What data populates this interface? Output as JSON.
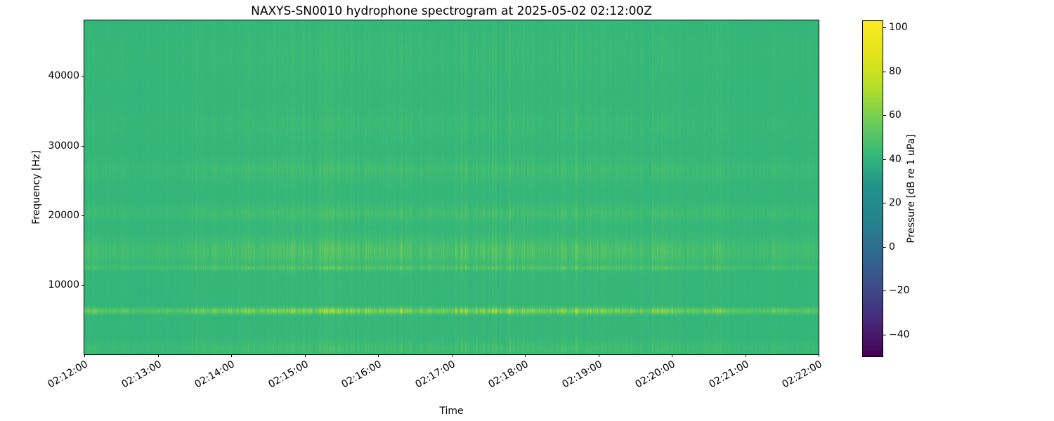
{
  "chart_data": {
    "type": "heatmap",
    "title": "NAXYS-SN0010 hydrophone spectrogram at 2025-05-02 02:12:00Z",
    "xlabel": "Time",
    "ylabel": "Frequency [Hz]",
    "x_ticks": [
      "02:12:00",
      "02:13:00",
      "02:14:00",
      "02:15:00",
      "02:16:00",
      "02:17:00",
      "02:18:00",
      "02:19:00",
      "02:20:00",
      "02:21:00",
      "02:22:00"
    ],
    "y_ticks": [
      {
        "label": "10000",
        "value": 10000
      },
      {
        "label": "20000",
        "value": 20000
      },
      {
        "label": "30000",
        "value": 30000
      },
      {
        "label": "40000",
        "value": 40000
      }
    ],
    "y_range_hz": [
      0,
      48000
    ],
    "duration_seconds": 600,
    "colormap": "viridis",
    "grid": false,
    "colorbar": {
      "label": "Pressure [dB re 1 uPa]",
      "vmin": -50,
      "vmax": 103,
      "ticks": [
        {
          "label": "100",
          "value": 100
        },
        {
          "label": "80",
          "value": 80
        },
        {
          "label": "60",
          "value": 60
        },
        {
          "label": "40",
          "value": 40
        },
        {
          "label": "20",
          "value": 20
        },
        {
          "label": "0",
          "value": 0
        },
        {
          "label": "−20",
          "value": -20
        },
        {
          "label": "−40",
          "value": -40
        }
      ]
    },
    "background_db": 41,
    "bands": [
      {
        "name": "tonal-6khz",
        "center_hz": 6200,
        "width_hz": 300,
        "peak_db_boost": 24
      },
      {
        "name": "tonal-12-4khz",
        "center_hz": 12400,
        "width_hz": 220,
        "peak_db_boost": 10
      },
      {
        "name": "broadband-14-8khz",
        "center_hz": 14800,
        "width_hz": 1300,
        "peak_db_boost": 9
      },
      {
        "name": "band-20khz",
        "center_hz": 20300,
        "width_hz": 800,
        "peak_db_boost": 5
      },
      {
        "name": "band-26-5khz",
        "center_hz": 26500,
        "width_hz": 1100,
        "peak_db_boost": 4
      },
      {
        "name": "band-33khz",
        "center_hz": 33000,
        "width_hz": 1500,
        "peak_db_boost": 2
      },
      {
        "name": "band-43khz",
        "center_hz": 43000,
        "width_hz": 2500,
        "peak_db_boost": 1.5
      },
      {
        "name": "low-freq",
        "center_hz": 800,
        "width_hz": 700,
        "peak_db_boost": 5
      }
    ],
    "striation_db_variation": 6
  }
}
